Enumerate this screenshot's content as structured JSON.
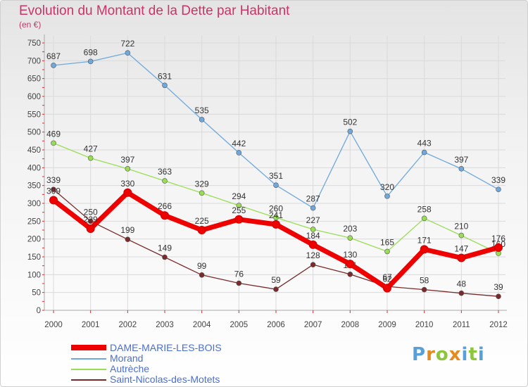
{
  "title": "Evolution du Montant de la Dette par Habitant",
  "unit": "(en €)",
  "brand": "Proxiti",
  "chart_data": {
    "type": "line",
    "x": [
      "2000",
      "2001",
      "2002",
      "2003",
      "2004",
      "2005",
      "2006",
      "2007",
      "2008",
      "2009",
      "2010",
      "2011",
      "2012"
    ],
    "ylim": [
      0,
      750
    ],
    "yticks": [
      0,
      50,
      100,
      150,
      200,
      250,
      300,
      350,
      400,
      450,
      500,
      550,
      600,
      650,
      700,
      750
    ],
    "grid": true,
    "legend_position": "bottom-left",
    "series": [
      {
        "name": "DAME-MARIE-LES-BOIS",
        "color": "#ee0000",
        "width": 7,
        "values": [
          309,
          229,
          330,
          266,
          225,
          255,
          241,
          184,
          130,
          62,
          171,
          147,
          176
        ]
      },
      {
        "name": "Morand",
        "color": "#6fa8dc",
        "width": 1.3,
        "values": [
          687,
          698,
          722,
          631,
          535,
          442,
          351,
          287,
          502,
          320,
          443,
          397,
          339
        ]
      },
      {
        "name": "Autrèche",
        "color": "#99dd55",
        "width": 1.3,
        "values": [
          469,
          427,
          397,
          363,
          329,
          294,
          260,
          227,
          203,
          165,
          258,
          210,
          160
        ]
      },
      {
        "name": "Saint-Nicolas-des-Motets",
        "color": "#7a2a2a",
        "width": 1.3,
        "values": [
          339,
          250,
          199,
          149,
          99,
          76,
          59,
          128,
          101,
          67,
          58,
          48,
          39
        ]
      }
    ]
  }
}
